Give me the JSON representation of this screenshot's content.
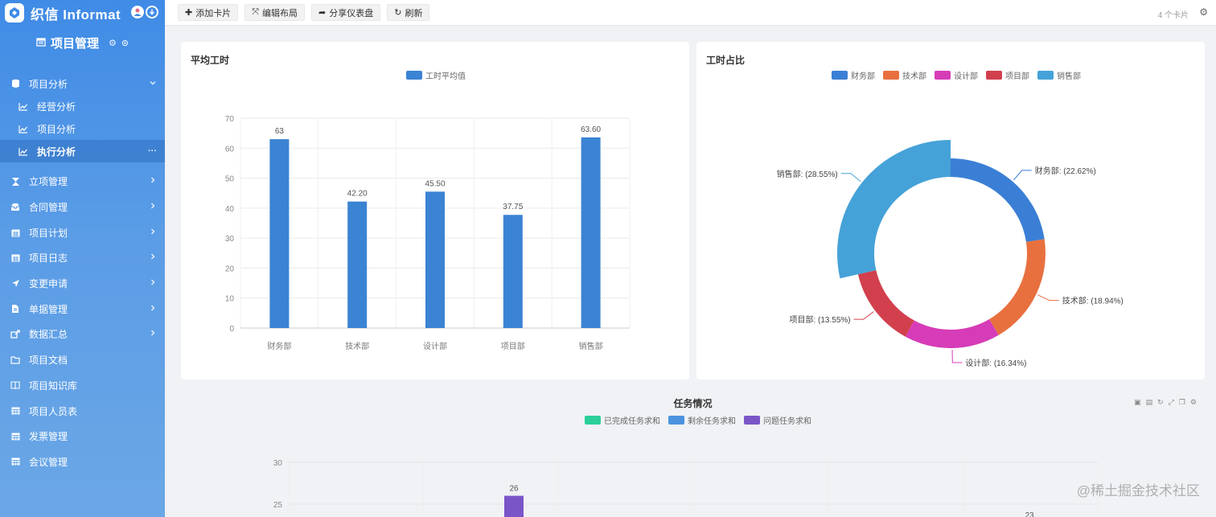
{
  "brand": {
    "name": "织信 Informat"
  },
  "project": {
    "title": "项目管理"
  },
  "menu": {
    "analysis_group": "项目分析",
    "analysis_items": [
      {
        "label": "经营分析"
      },
      {
        "label": "项目分析"
      },
      {
        "label": "执行分析",
        "active": true,
        "extra": "···"
      }
    ],
    "items": [
      {
        "label": "立项管理",
        "icon": "hourglass-icon",
        "arrow": true
      },
      {
        "label": "合同管理",
        "icon": "inbox-icon",
        "arrow": true
      },
      {
        "label": "项目计划",
        "icon": "calendar-icon",
        "arrow": true
      },
      {
        "label": "项目日志",
        "icon": "calendar-icon",
        "arrow": true
      },
      {
        "label": "变更申请",
        "icon": "send-icon",
        "arrow": true
      },
      {
        "label": "单据管理",
        "icon": "file-icon",
        "arrow": true
      },
      {
        "label": "数据汇总",
        "icon": "share-icon",
        "arrow": true
      },
      {
        "label": "项目文档",
        "icon": "folder-icon",
        "arrow": false
      },
      {
        "label": "项目知识库",
        "icon": "book-icon",
        "arrow": false
      },
      {
        "label": "项目人员表",
        "icon": "table-icon",
        "arrow": false
      },
      {
        "label": "发票管理",
        "icon": "table-icon",
        "arrow": false
      },
      {
        "label": "会议管理",
        "icon": "table-icon",
        "arrow": false
      }
    ]
  },
  "toolbar": {
    "add_card": "添加卡片",
    "edit_layout": "编辑布局",
    "share": "分享仪表盘",
    "refresh": "刷新",
    "card_count": "4 个卡片"
  },
  "colors": {
    "bar_blue": "#3b83d3",
    "finance": "#3a7fd5",
    "tech": "#e8703f",
    "design": "#d63cb8",
    "project": "#d2404e",
    "sales": "#45a2d8",
    "completed": "#2ccf9b",
    "remaining": "#4b93e0",
    "problem": "#7a55c8"
  },
  "watermark": "@稀土掘金技术社区",
  "chart_data": [
    {
      "type": "bar",
      "title": "平均工时",
      "categories": [
        "财务部",
        "技术部",
        "设计部",
        "项目部",
        "销售部"
      ],
      "series": [
        {
          "name": "工时平均值",
          "values": [
            63,
            42.2,
            45.5,
            37.75,
            63.6
          ]
        }
      ],
      "labels": [
        "63",
        "42.20",
        "45.50",
        "37.75",
        "63.60"
      ],
      "ylim": [
        0,
        70
      ],
      "yticks": [
        "0",
        "10",
        "20",
        "30",
        "40",
        "50",
        "60",
        "70"
      ],
      "grid": true,
      "legend": "top-center"
    },
    {
      "type": "pie",
      "title": "工时占比",
      "slices": [
        {
          "name": "财务部",
          "value": 22.62,
          "label": "财务部: (22.62%)"
        },
        {
          "name": "技术部",
          "value": 18.94,
          "label": "技术部: (18.94%)"
        },
        {
          "name": "设计部",
          "value": 16.34,
          "label": "设计部: (16.34%)"
        },
        {
          "name": "项目部",
          "value": 13.55,
          "label": "项目部: (13.55%)"
        },
        {
          "name": "销售部",
          "value": 28.55,
          "label": "销售部: (28.55%)"
        }
      ],
      "legend": "top-center"
    },
    {
      "type": "bar",
      "title": "任务情况",
      "series": [
        {
          "name": "已完成任务求和"
        },
        {
          "name": "剩余任务求和"
        },
        {
          "name": "问题任务求和"
        }
      ],
      "visible_values": {
        "问题任务求和": [
          26
        ]
      },
      "visible_labels": [
        "26",
        "23"
      ],
      "yticks": [
        "25",
        "30"
      ],
      "ylim_visible": [
        23,
        30
      ],
      "legend": "top-center"
    }
  ]
}
